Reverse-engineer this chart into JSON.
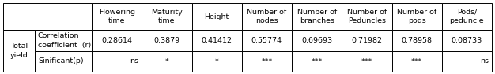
{
  "col_headers": [
    "Flowering\ntime",
    "Maturity\ntime",
    "Height",
    "Number of\nnodes",
    "Number of\nbranches",
    "Number of\nPeduncles",
    "Number of\npods",
    "Pods/\npeduncle"
  ],
  "row_header_1": "Total\nyield",
  "row_header_2a": "Correlation\ncoefficient  (r)",
  "row_header_2b": "Sinificant(p)",
  "corr_values": [
    "0.28614",
    "0.3879",
    "0.41412",
    "0.55774",
    "0.69693",
    "0.71982",
    "0.78958",
    "0.08733"
  ],
  "sig_values": [
    "ns",
    "*",
    "*",
    "***",
    "***",
    "***",
    "***",
    "ns"
  ],
  "background_color": "#ffffff",
  "border_color": "#000000",
  "font_size": 6.8,
  "header_font_size": 6.8,
  "fig_width": 6.26,
  "fig_height": 0.94,
  "dpi": 100
}
